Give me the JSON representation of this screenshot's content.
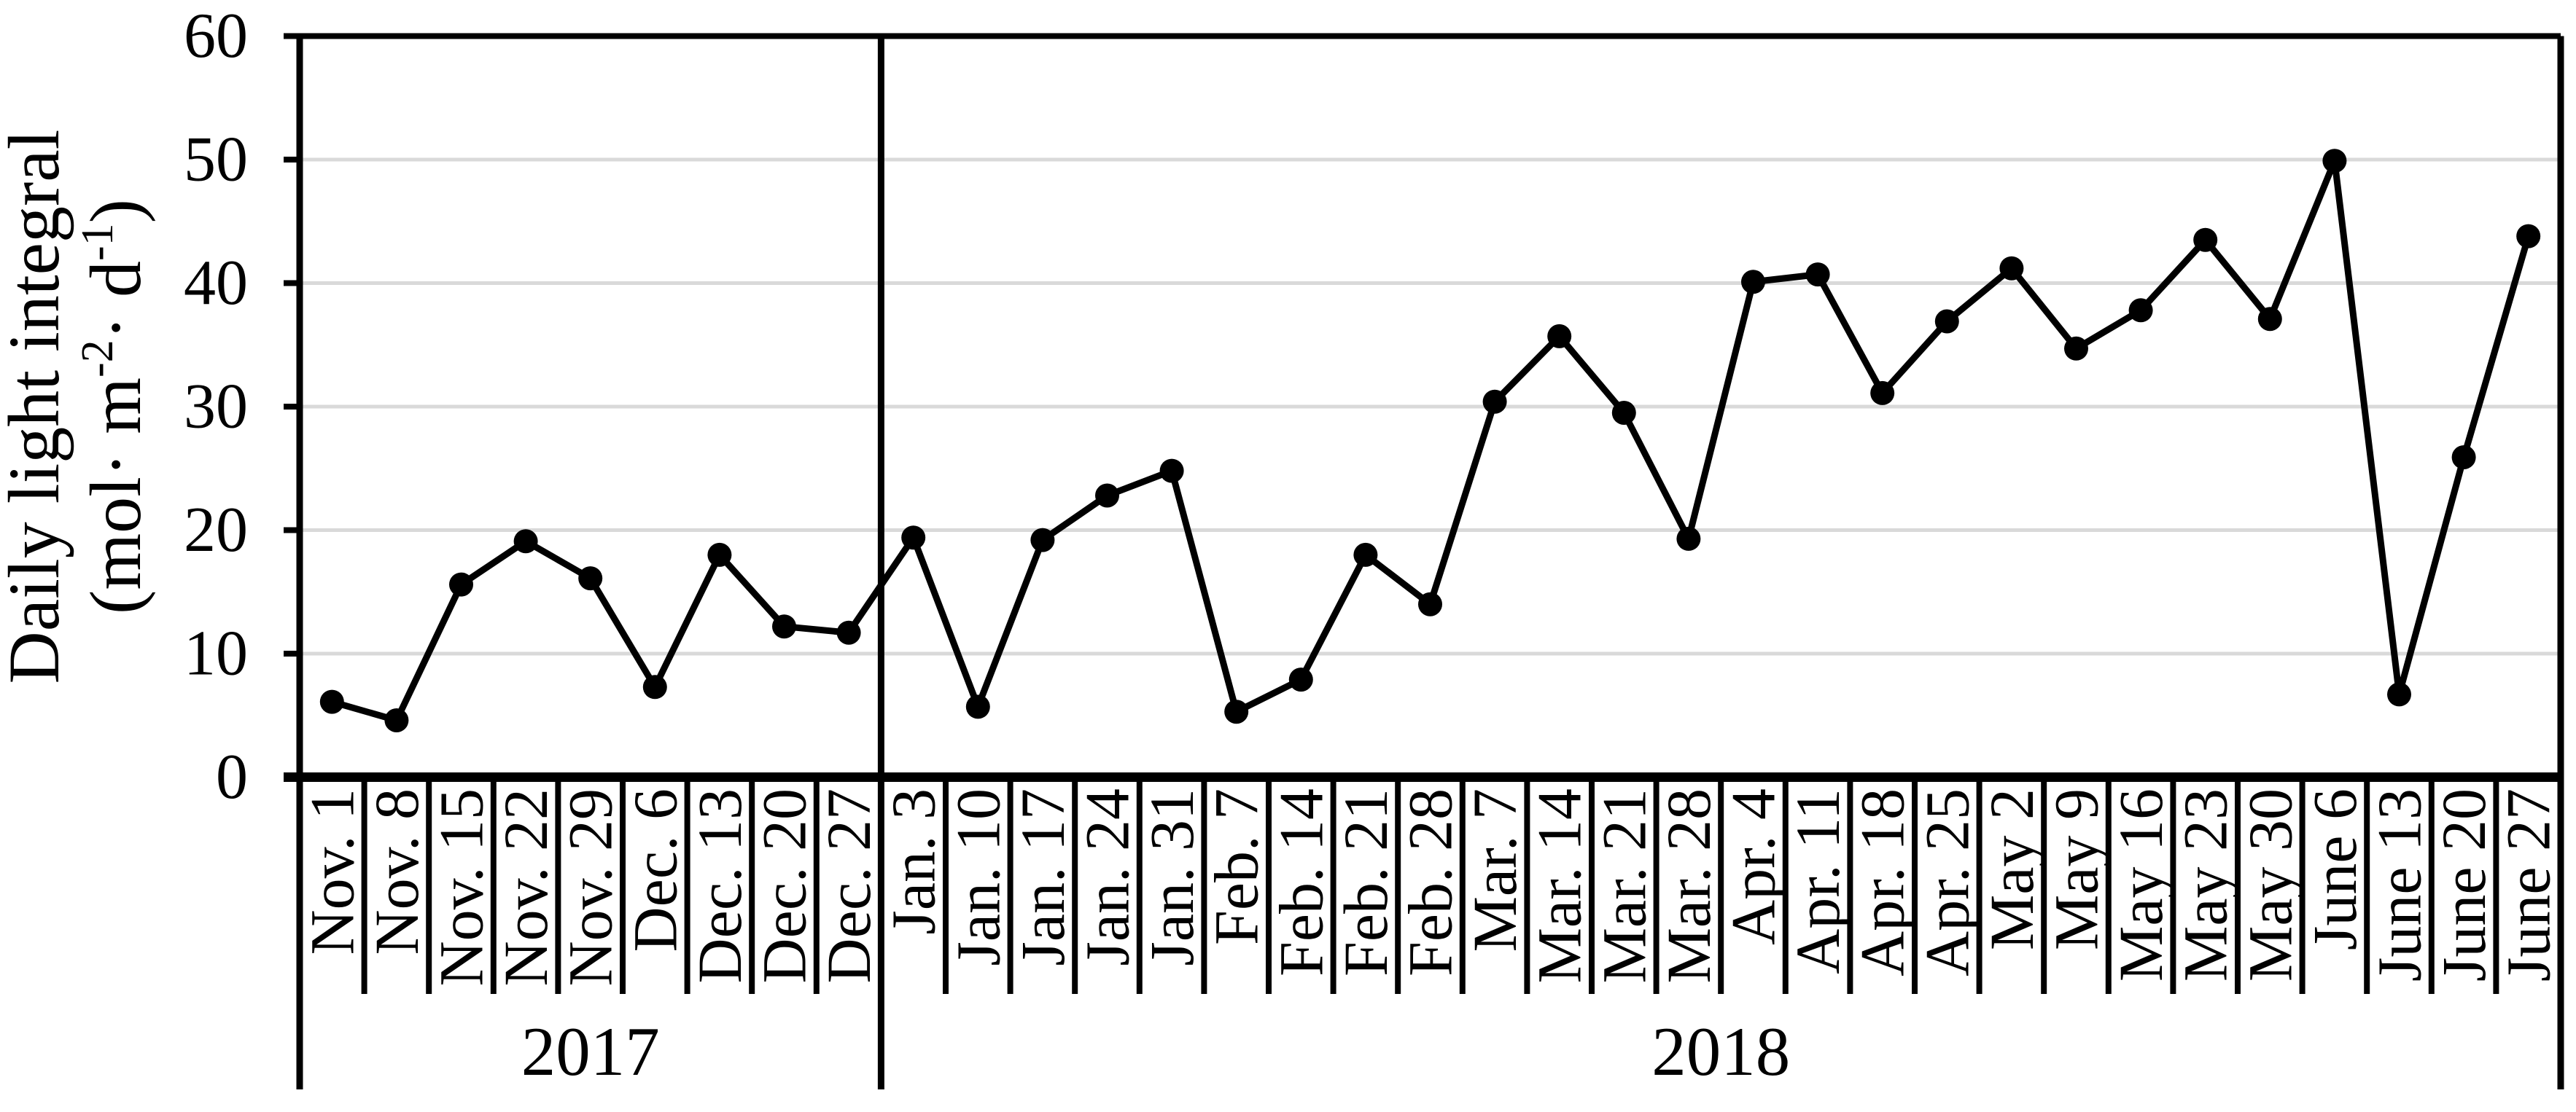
{
  "figure": {
    "background": "#ffffff",
    "line_color": "#000000",
    "marker_color": "#000000",
    "gridline_color": "#d9d9d9",
    "axis_color": "#000000"
  },
  "chart_data": {
    "type": "line",
    "title": "",
    "ylabel_line1": "Daily light integral",
    "ylabel_line2_parts": [
      {
        "t": "(mol· m",
        "sup": false
      },
      {
        "t": "-2",
        "sup": true
      },
      {
        "t": "· d",
        "sup": false
      },
      {
        "t": "-1",
        "sup": true
      },
      {
        "t": ")",
        "sup": false
      }
    ],
    "xlabel": "",
    "ylim": [
      0,
      60
    ],
    "yticks": [
      0,
      10,
      20,
      30,
      40,
      50,
      60
    ],
    "grid": "horizontal",
    "legend": "none",
    "marker": "filled-circle",
    "categories": [
      "Nov. 1",
      "Nov. 8",
      "Nov. 15",
      "Nov. 22",
      "Nov. 29",
      "Dec. 6",
      "Dec. 13",
      "Dec. 20",
      "Dec. 27",
      "Jan. 3",
      "Jan. 10",
      "Jan. 17",
      "Jan. 24",
      "Jan. 31",
      "Feb. 7",
      "Feb. 14",
      "Feb. 21",
      "Feb. 28",
      "Mar. 7",
      "Mar. 14",
      "Mar. 21",
      "Mar. 28",
      "Apr. 4",
      "Apr. 11",
      "Apr. 18",
      "Apr. 25",
      "May 2",
      "May 9",
      "May 16",
      "May 23",
      "May 30",
      "June 6",
      "June 13",
      "June 20",
      "June 27"
    ],
    "values": [
      6.1,
      4.6,
      15.6,
      19.1,
      16.1,
      7.3,
      18.0,
      12.2,
      11.7,
      19.4,
      5.7,
      19.2,
      22.8,
      24.8,
      5.3,
      7.9,
      18.0,
      14.0,
      30.4,
      35.7,
      29.5,
      19.3,
      40.1,
      40.7,
      31.1,
      36.9,
      41.2,
      34.7,
      37.8,
      43.5,
      37.1,
      49.9,
      6.7,
      25.9,
      43.8
    ],
    "year_groups": [
      {
        "label": "2017",
        "start_index": 0,
        "end_index": 8
      },
      {
        "label": "2018",
        "start_index": 9,
        "end_index": 34
      }
    ]
  }
}
